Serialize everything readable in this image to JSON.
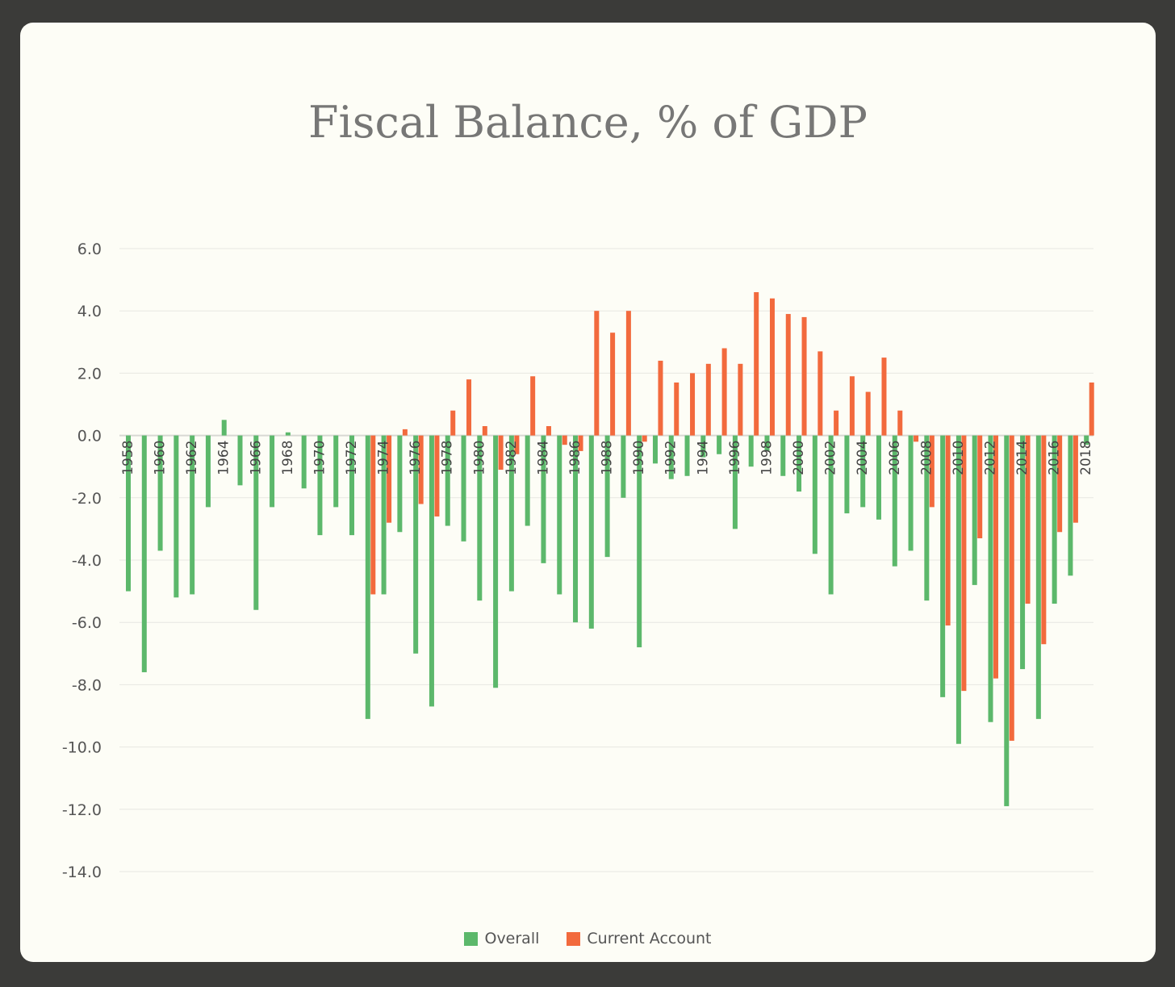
{
  "chart_data": {
    "type": "bar",
    "title": "Fiscal Balance, % of GDP",
    "xlabel": "",
    "ylabel": "",
    "ylim": [
      -14,
      6
    ],
    "yticks": [
      "6.0",
      "4.0",
      "2.0",
      "0.0",
      "-2.0",
      "-4.0",
      "-6.0",
      "-8.0",
      "-10.0",
      "-12.0",
      "-14.0"
    ],
    "grid": true,
    "legend_position": "bottom",
    "categories": [
      1958,
      1959,
      1960,
      1961,
      1962,
      1963,
      1964,
      1965,
      1966,
      1967,
      1968,
      1969,
      1970,
      1971,
      1972,
      1973,
      1974,
      1975,
      1976,
      1977,
      1978,
      1979,
      1980,
      1981,
      1982,
      1983,
      1984,
      1985,
      1986,
      1987,
      1988,
      1989,
      1990,
      1991,
      1992,
      1993,
      1994,
      1995,
      1996,
      1997,
      1998,
      1999,
      2000,
      2001,
      2002,
      2003,
      2004,
      2005,
      2006,
      2007,
      2008,
      2009,
      2010,
      2011,
      2012,
      2013,
      2014,
      2015,
      2016,
      2017,
      2018
    ],
    "tick_labels": [
      "1958",
      "1960",
      "1962",
      "1964",
      "1966",
      "1968",
      "1970",
      "1972",
      "1974",
      "1976",
      "1978",
      "1980",
      "1982",
      "1984",
      "1986",
      "1988",
      "1990",
      "1992",
      "1994",
      "1996",
      "1998",
      "2000",
      "2002",
      "2004",
      "2006",
      "2008",
      "2010",
      "2012",
      "2014",
      "2016",
      "2018"
    ],
    "series": [
      {
        "name": "Overall",
        "color": "#5cb86b",
        "values": [
          -5.0,
          -7.6,
          -3.7,
          -5.2,
          -5.1,
          -2.3,
          0.5,
          -1.6,
          -5.6,
          -2.3,
          0.1,
          -1.7,
          -3.2,
          -2.3,
          -3.2,
          -9.1,
          -5.1,
          -3.1,
          -7.0,
          -8.7,
          -2.9,
          -3.4,
          -5.3,
          -8.1,
          -5.0,
          -2.9,
          -4.1,
          -5.1,
          -6.0,
          -6.2,
          -3.9,
          -2.0,
          -6.8,
          -0.9,
          -1.4,
          -1.3,
          -0.7,
          -0.6,
          -3.0,
          -1.0,
          -0.5,
          -1.3,
          -1.8,
          -3.8,
          -5.1,
          -2.5,
          -2.3,
          -2.7,
          -4.2,
          -3.7,
          -5.3,
          -8.4,
          -9.9,
          -4.8,
          -9.2,
          -11.9,
          -7.5,
          -9.1,
          -5.4,
          -4.5,
          -0.3
        ]
      },
      {
        "name": "Current Account",
        "color": "#f26a3d",
        "values": [
          null,
          null,
          null,
          null,
          null,
          null,
          null,
          null,
          null,
          null,
          null,
          null,
          null,
          null,
          null,
          -5.1,
          -2.8,
          0.2,
          -2.2,
          -2.6,
          0.8,
          1.8,
          0.3,
          -1.1,
          -0.6,
          1.9,
          0.3,
          -0.3,
          -0.5,
          4.0,
          3.3,
          4.0,
          -0.2,
          2.4,
          1.7,
          2.0,
          2.3,
          2.8,
          2.3,
          4.6,
          4.4,
          3.9,
          3.8,
          2.7,
          0.8,
          1.9,
          1.4,
          2.5,
          0.8,
          -0.2,
          -2.3,
          -6.1,
          -8.2,
          -3.3,
          -7.8,
          -9.8,
          -5.4,
          -6.7,
          -3.1,
          -2.8,
          1.7
        ]
      }
    ]
  }
}
